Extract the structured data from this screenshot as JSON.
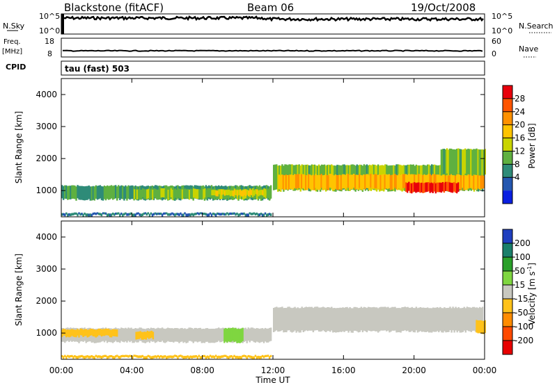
{
  "header": {
    "station": "Blackstone (fitACF)",
    "beam": "Beam 06",
    "date": "19/Oct/2008"
  },
  "aux_panels": {
    "nsky_label": "N.Sky",
    "nsearch_label": "N.Search",
    "noise_tick_top": "10^5",
    "noise_tick_bottom": "10^0",
    "freq_label_line1": "Freq.",
    "freq_label_line2": "[MHz]",
    "freq_ticks": [
      "18",
      "8"
    ],
    "nave_label": "Nave",
    "nave_ticks": [
      "60",
      "0"
    ],
    "cpid_label": "CPID",
    "cpid_text": "tau (fast) 503"
  },
  "power_colorbar": {
    "label": "Power [dB]",
    "ticks": [
      "28",
      "24",
      "20",
      "16",
      "12",
      "8",
      "4"
    ],
    "colors": [
      "#e8000b",
      "#ff5500",
      "#ff9100",
      "#ffc400",
      "#c9d400",
      "#5fb040",
      "#2e8b78",
      "#2457b0",
      "#0a1fe0"
    ]
  },
  "velocity_colorbar": {
    "label": "Velocity [m s^-1]",
    "label_main": "Velocity [m s",
    "label_sup": "-1",
    "label_end": "]",
    "ticks": [
      "200",
      "100",
      "50",
      "15",
      "-15",
      "-50",
      "-100",
      "-200"
    ],
    "colors": [
      "#1f3fbf",
      "#1a7f6a",
      "#2aa02a",
      "#7fd640",
      "#c8c8c0",
      "#ffc21a",
      "#ff8c00",
      "#ff4a00",
      "#e80000"
    ]
  },
  "chart_data": {
    "type": "heatmap",
    "xlabel": "Time UT",
    "ylabel": "Slant Range [km]",
    "xticks": [
      "00:00",
      "04:00",
      "08:00",
      "12:00",
      "16:00",
      "20:00",
      "00:00"
    ],
    "x_hours": [
      0,
      4,
      8,
      12,
      16,
      20,
      24
    ],
    "yticks": [
      1000,
      2000,
      3000,
      4000
    ],
    "ylim": [
      180,
      4500
    ],
    "xlim": [
      0,
      24
    ],
    "panels": [
      {
        "name": "Power",
        "bands": [
          {
            "t0": 0.0,
            "t1": 11.9,
            "r0": 720,
            "r1": 1150,
            "v": 9
          },
          {
            "t0": 0.0,
            "t1": 11.9,
            "r0": 220,
            "r1": 300,
            "v": 6
          },
          {
            "t0": 4.1,
            "t1": 11.8,
            "r0": 750,
            "r1": 1050,
            "v": 13
          },
          {
            "t0": 8.5,
            "t1": 11.6,
            "r0": 850,
            "r1": 1020,
            "v": 17
          },
          {
            "t0": 12.0,
            "t1": 23.9,
            "r0": 1000,
            "r1": 1800,
            "v": 12
          },
          {
            "t0": 12.3,
            "t1": 23.9,
            "r0": 1050,
            "r1": 1500,
            "v": 20
          },
          {
            "t0": 19.5,
            "t1": 22.5,
            "r0": 950,
            "r1": 1250,
            "v": 28
          },
          {
            "t0": 21.5,
            "t1": 24.0,
            "r0": 1500,
            "r1": 2300,
            "v": 12
          }
        ]
      },
      {
        "name": "Velocity",
        "bands": [
          {
            "t0": 0.0,
            "t1": 11.9,
            "r0": 720,
            "r1": 1150,
            "v": 0
          },
          {
            "t0": 0.0,
            "t1": 3.2,
            "r0": 900,
            "r1": 1120,
            "v": -40
          },
          {
            "t0": 4.2,
            "t1": 5.2,
            "r0": 820,
            "r1": 1050,
            "v": -40
          },
          {
            "t0": 9.2,
            "t1": 10.3,
            "r0": 720,
            "r1": 1150,
            "v": 30
          },
          {
            "t0": 0.0,
            "t1": 11.9,
            "r0": 220,
            "r1": 300,
            "v": -40
          },
          {
            "t0": 12.0,
            "t1": 23.9,
            "r0": 1050,
            "r1": 1800,
            "v": 0
          },
          {
            "t0": 23.5,
            "t1": 24.0,
            "r0": 1000,
            "r1": 1400,
            "v": -40
          }
        ]
      }
    ]
  }
}
